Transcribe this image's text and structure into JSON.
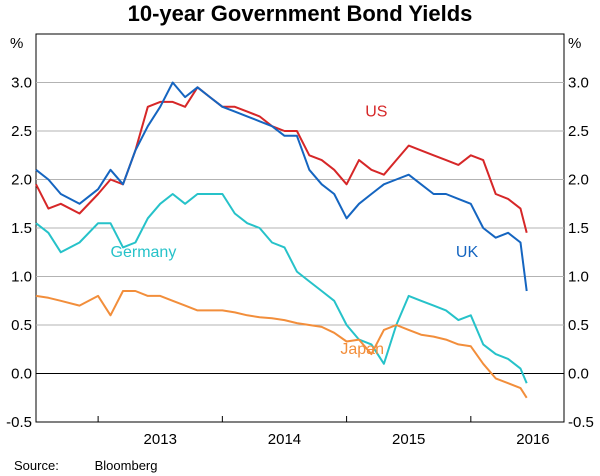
{
  "title": "10-year Government Bond Yields",
  "source": {
    "label": "Source:",
    "value": "Bloomberg"
  },
  "chart_data": {
    "type": "line",
    "title": "10-year Government Bond Yields",
    "y_unit_left": "%",
    "y_unit_right": "%",
    "ylim": [
      -0.5,
      3.5
    ],
    "yticks": [
      "-0.5",
      "0.0",
      "0.5",
      "1.0",
      "1.5",
      "2.0",
      "2.5",
      "3.0"
    ],
    "xlim": [
      2012.5,
      2016.75
    ],
    "xticks": [
      "2013",
      "2014",
      "2015",
      "2016"
    ],
    "grid": "horizontal",
    "reference_line": 0,
    "series": [
      {
        "name": "US",
        "color": "#d62728",
        "x": [
          2012.5,
          2012.6,
          2012.7,
          2012.85,
          2013.0,
          2013.1,
          2013.2,
          2013.3,
          2013.4,
          2013.5,
          2013.6,
          2013.7,
          2013.8,
          2013.9,
          2014.0,
          2014.1,
          2014.2,
          2014.3,
          2014.4,
          2014.5,
          2014.6,
          2014.7,
          2014.8,
          2014.9,
          2015.0,
          2015.1,
          2015.2,
          2015.3,
          2015.4,
          2015.5,
          2015.6,
          2015.7,
          2015.8,
          2015.9,
          2016.0,
          2016.1,
          2016.2,
          2016.3,
          2016.4,
          2016.45
        ],
        "y": [
          1.95,
          1.7,
          1.75,
          1.65,
          1.85,
          2.0,
          1.95,
          2.3,
          2.75,
          2.8,
          2.8,
          2.75,
          2.95,
          2.85,
          2.75,
          2.75,
          2.7,
          2.65,
          2.55,
          2.5,
          2.5,
          2.25,
          2.2,
          2.1,
          1.95,
          2.2,
          2.1,
          2.05,
          2.2,
          2.35,
          2.3,
          2.25,
          2.2,
          2.15,
          2.25,
          2.2,
          1.85,
          1.8,
          1.7,
          1.45
        ]
      },
      {
        "name": "UK",
        "color": "#1565c0",
        "x": [
          2012.5,
          2012.6,
          2012.7,
          2012.85,
          2013.0,
          2013.1,
          2013.2,
          2013.3,
          2013.4,
          2013.5,
          2013.6,
          2013.7,
          2013.8,
          2013.9,
          2014.0,
          2014.1,
          2014.2,
          2014.3,
          2014.4,
          2014.5,
          2014.6,
          2014.7,
          2014.8,
          2014.9,
          2015.0,
          2015.1,
          2015.2,
          2015.3,
          2015.4,
          2015.5,
          2015.6,
          2015.7,
          2015.8,
          2015.9,
          2016.0,
          2016.1,
          2016.2,
          2016.3,
          2016.4,
          2016.45
        ],
        "y": [
          2.1,
          2.0,
          1.85,
          1.75,
          1.9,
          2.1,
          1.95,
          2.3,
          2.55,
          2.75,
          3.0,
          2.85,
          2.95,
          2.85,
          2.75,
          2.7,
          2.65,
          2.6,
          2.55,
          2.45,
          2.45,
          2.1,
          1.95,
          1.85,
          1.6,
          1.75,
          1.85,
          1.95,
          2.0,
          2.05,
          1.95,
          1.85,
          1.85,
          1.8,
          1.75,
          1.5,
          1.4,
          1.45,
          1.35,
          0.85
        ]
      },
      {
        "name": "Germany",
        "color": "#26c2c9",
        "x": [
          2012.5,
          2012.6,
          2012.7,
          2012.85,
          2013.0,
          2013.1,
          2013.2,
          2013.3,
          2013.4,
          2013.5,
          2013.6,
          2013.7,
          2013.8,
          2013.9,
          2014.0,
          2014.1,
          2014.2,
          2014.3,
          2014.4,
          2014.5,
          2014.6,
          2014.7,
          2014.8,
          2014.9,
          2015.0,
          2015.1,
          2015.2,
          2015.3,
          2015.4,
          2015.5,
          2015.6,
          2015.7,
          2015.8,
          2015.9,
          2016.0,
          2016.1,
          2016.2,
          2016.3,
          2016.4,
          2016.45
        ],
        "y": [
          1.55,
          1.45,
          1.25,
          1.35,
          1.55,
          1.55,
          1.3,
          1.35,
          1.6,
          1.75,
          1.85,
          1.75,
          1.85,
          1.85,
          1.85,
          1.65,
          1.55,
          1.5,
          1.35,
          1.3,
          1.05,
          0.95,
          0.85,
          0.75,
          0.5,
          0.35,
          0.3,
          0.1,
          0.5,
          0.8,
          0.75,
          0.7,
          0.65,
          0.55,
          0.6,
          0.3,
          0.2,
          0.15,
          0.05,
          -0.1
        ]
      },
      {
        "name": "Japan",
        "color": "#f28e3b",
        "x": [
          2012.5,
          2012.6,
          2012.7,
          2012.85,
          2013.0,
          2013.1,
          2013.2,
          2013.3,
          2013.4,
          2013.5,
          2013.6,
          2013.7,
          2013.8,
          2013.9,
          2014.0,
          2014.1,
          2014.2,
          2014.3,
          2014.4,
          2014.5,
          2014.6,
          2014.7,
          2014.8,
          2014.9,
          2015.0,
          2015.1,
          2015.2,
          2015.3,
          2015.4,
          2015.5,
          2015.6,
          2015.7,
          2015.8,
          2015.9,
          2016.0,
          2016.1,
          2016.2,
          2016.3,
          2016.4,
          2016.45
        ],
        "y": [
          0.8,
          0.78,
          0.75,
          0.7,
          0.8,
          0.6,
          0.85,
          0.85,
          0.8,
          0.8,
          0.75,
          0.7,
          0.65,
          0.65,
          0.65,
          0.63,
          0.6,
          0.58,
          0.57,
          0.55,
          0.52,
          0.5,
          0.48,
          0.42,
          0.33,
          0.35,
          0.2,
          0.45,
          0.5,
          0.45,
          0.4,
          0.38,
          0.35,
          0.3,
          0.28,
          0.1,
          -0.05,
          -0.1,
          -0.15,
          -0.25
        ]
      }
    ],
    "annotations": [
      {
        "text": "US",
        "x": 2015.15,
        "y": 2.65,
        "color": "#d62728"
      },
      {
        "text": "UK",
        "x": 2015.88,
        "y": 1.2,
        "color": "#1565c0"
      },
      {
        "text": "Germany",
        "x": 2013.1,
        "y": 1.2,
        "color": "#26c2c9"
      },
      {
        "text": "Japan",
        "x": 2014.95,
        "y": 0.2,
        "color": "#f28e3b"
      }
    ]
  }
}
